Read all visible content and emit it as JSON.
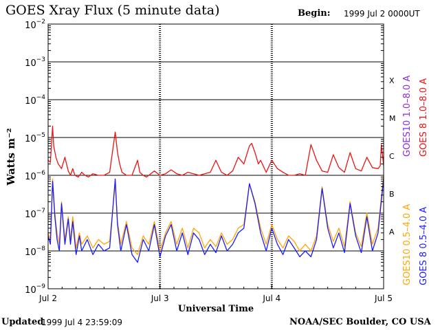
{
  "header": {
    "title": "GOES Xray Flux (5 minute data)",
    "begin_label": "Begin:",
    "begin_value": "1999 Jul 2 0000UT"
  },
  "footer": {
    "updated_label": "Updated",
    "updated_value": "1999 Jul  4 23:59:09",
    "credit": "NOAA/SEC Boulder, CO USA"
  },
  "chart_data": {
    "type": "line",
    "title": "GOES Xray Flux (5 minute data)",
    "xlabel": "Universal Time",
    "ylabel": "Watts m⁻²",
    "y_scale": "log",
    "ylim": [
      1e-09,
      0.01
    ],
    "xlim": [
      0,
      3
    ],
    "x_unit": "days since 1999 Jul 2 00:00 UT",
    "x_ticks": [
      {
        "x": 0,
        "label": "Jul 2"
      },
      {
        "x": 1,
        "label": "Jul 3"
      },
      {
        "x": 2,
        "label": "Jul 4"
      },
      {
        "x": 3,
        "label": "Jul 5"
      }
    ],
    "y_tick_labels": [
      {
        "base": "10",
        "exp": "−2",
        "value": 0.01
      },
      {
        "base": "10",
        "exp": "−3",
        "value": 0.001
      },
      {
        "base": "10",
        "exp": "−4",
        "value": 0.0001
      },
      {
        "base": "10",
        "exp": "−5",
        "value": 1e-05
      },
      {
        "base": "10",
        "exp": "−6",
        "value": 1e-06
      },
      {
        "base": "10",
        "exp": "−7",
        "value": 1e-07
      },
      {
        "base": "10",
        "exp": "−8",
        "value": 1e-08
      },
      {
        "base": "10",
        "exp": "−9",
        "value": 1e-09
      }
    ],
    "flare_classes": [
      {
        "label": "X",
        "value": 0.00032
      },
      {
        "label": "M",
        "value": 3.2e-05
      },
      {
        "label": "C",
        "value": 3.2e-06
      },
      {
        "label": "B",
        "value": 3.2e-07
      },
      {
        "label": "A",
        "value": 3.2e-08
      }
    ],
    "grid": {
      "horizontal_decades": true,
      "dashed_day_markers": true
    },
    "legend_position": "right, rotated vertical",
    "legend": [
      {
        "name": "GOES10 1.0–8.0 A",
        "color": "#8a2be2"
      },
      {
        "name": "GOES 8 1.0–8.0 A",
        "color": "#ee1111"
      },
      {
        "name": "GOES10 0.5–4.0 A",
        "color": "#ffa500"
      },
      {
        "name": "GOES 8 0.5–4.0 A",
        "color": "#1a1aff"
      }
    ],
    "series": [
      {
        "name": "GOES 8 1.0–8.0 A",
        "color": "#ee1111",
        "x": [
          0,
          0.02,
          0.04,
          0.05,
          0.07,
          0.09,
          0.12,
          0.15,
          0.18,
          0.2,
          0.22,
          0.24,
          0.27,
          0.3,
          0.33,
          0.36,
          0.4,
          0.45,
          0.5,
          0.55,
          0.6,
          0.62,
          0.64,
          0.66,
          0.7,
          0.75,
          0.8,
          0.82,
          0.85,
          0.88,
          0.9,
          0.95,
          1.0,
          1.05,
          1.1,
          1.15,
          1.2,
          1.25,
          1.3,
          1.35,
          1.4,
          1.45,
          1.5,
          1.55,
          1.6,
          1.65,
          1.7,
          1.75,
          1.8,
          1.82,
          1.85,
          1.88,
          1.9,
          1.95,
          2.0,
          2.05,
          2.1,
          2.15,
          2.2,
          2.25,
          2.3,
          2.35,
          2.4,
          2.45,
          2.5,
          2.55,
          2.6,
          2.65,
          2.7,
          2.75,
          2.8,
          2.85,
          2.9,
          2.95,
          2.97,
          2.98,
          3.0
        ],
        "values": [
          2.5e-06,
          2.2e-06,
          2e-05,
          6e-06,
          3e-06,
          2e-06,
          1.5e-06,
          3e-06,
          1.3e-06,
          1e-06,
          1.5e-06,
          1e-06,
          9e-07,
          1.2e-06,
          1e-06,
          9e-07,
          1.1e-06,
          1e-06,
          1e-06,
          1.2e-06,
          1.4e-05,
          4e-06,
          2e-06,
          1.2e-06,
          1e-06,
          1e-06,
          2.5e-06,
          1.2e-06,
          1e-06,
          9e-07,
          1e-06,
          1.3e-06,
          1e-06,
          1.1e-06,
          1.4e-06,
          1.1e-06,
          1e-06,
          1.2e-06,
          1.1e-06,
          1e-06,
          1.1e-06,
          1.2e-06,
          2.5e-06,
          1.2e-06,
          1e-06,
          1.3e-06,
          3e-06,
          2e-06,
          6e-06,
          7e-06,
          4e-06,
          2e-06,
          2.5e-06,
          1.2e-06,
          2.5e-06,
          1.5e-06,
          1.2e-06,
          1e-06,
          1e-06,
          1.1e-06,
          1e-06,
          6.5e-06,
          2.5e-06,
          1.3e-06,
          1.2e-06,
          3.5e-06,
          1.6e-06,
          1.2e-06,
          4e-06,
          1.5e-06,
          1.3e-06,
          3e-06,
          1.6e-06,
          1.5e-06,
          1.8e-06,
          6.5e-06,
          1.8e-06
        ]
      },
      {
        "name": "GOES10 0.5–4.0 A",
        "color": "#ffa500",
        "x": [
          0,
          0.02,
          0.04,
          0.06,
          0.08,
          0.1,
          0.12,
          0.15,
          0.18,
          0.2,
          0.22,
          0.25,
          0.28,
          0.3,
          0.35,
          0.4,
          0.45,
          0.5,
          0.55,
          0.6,
          0.62,
          0.65,
          0.7,
          0.75,
          0.8,
          0.85,
          0.9,
          0.95,
          1.0,
          1.05,
          1.1,
          1.15,
          1.2,
          1.25,
          1.3,
          1.35,
          1.4,
          1.45,
          1.5,
          1.55,
          1.6,
          1.65,
          1.7,
          1.75,
          1.8,
          1.85,
          1.9,
          1.95,
          2.0,
          2.05,
          2.1,
          2.15,
          2.2,
          2.25,
          2.3,
          2.35,
          2.4,
          2.45,
          2.5,
          2.55,
          2.6,
          2.65,
          2.7,
          2.75,
          2.8,
          2.85,
          2.9,
          2.95,
          3.0
        ],
        "values": [
          3e-08,
          2e-08,
          8e-07,
          1e-07,
          3e-08,
          1.5e-08,
          2e-07,
          2e-08,
          8e-08,
          2e-08,
          8e-08,
          1.2e-08,
          3e-08,
          1.5e-08,
          2.5e-08,
          1.2e-08,
          2e-08,
          1.5e-08,
          1.8e-08,
          6e-07,
          6e-08,
          1.5e-08,
          6e-08,
          1.2e-08,
          8e-09,
          2.5e-08,
          1.5e-08,
          6e-08,
          1e-08,
          3e-08,
          6e-08,
          1.5e-08,
          4e-08,
          1.2e-08,
          4e-08,
          3e-08,
          1.2e-08,
          2e-08,
          1.3e-08,
          3e-08,
          1.5e-08,
          2e-08,
          4e-08,
          5e-08,
          6e-07,
          2e-07,
          4e-08,
          1.5e-08,
          5e-08,
          2e-08,
          1.2e-08,
          2.5e-08,
          1.8e-08,
          1e-08,
          1.5e-08,
          1e-08,
          2.5e-08,
          5e-07,
          5e-08,
          1.8e-08,
          4e-08,
          1.3e-08,
          2e-07,
          3e-08,
          1.3e-08,
          1e-07,
          1.5e-08,
          4e-08,
          1e-06
        ]
      },
      {
        "name": "GOES 8 0.5–4.0 A",
        "color": "#1a1aff",
        "x": [
          0,
          0.02,
          0.04,
          0.06,
          0.08,
          0.1,
          0.12,
          0.15,
          0.18,
          0.2,
          0.22,
          0.25,
          0.28,
          0.3,
          0.35,
          0.4,
          0.45,
          0.5,
          0.55,
          0.6,
          0.62,
          0.65,
          0.7,
          0.75,
          0.8,
          0.85,
          0.9,
          0.95,
          1.0,
          1.05,
          1.1,
          1.15,
          1.2,
          1.25,
          1.3,
          1.35,
          1.4,
          1.45,
          1.5,
          1.55,
          1.6,
          1.65,
          1.7,
          1.75,
          1.8,
          1.85,
          1.9,
          1.95,
          2.0,
          2.05,
          2.1,
          2.15,
          2.2,
          2.25,
          2.3,
          2.35,
          2.4,
          2.45,
          2.5,
          2.55,
          2.6,
          2.65,
          2.7,
          2.75,
          2.8,
          2.85,
          2.9,
          2.95,
          3.0
        ],
        "values": [
          2.5e-08,
          1.5e-08,
          7e-07,
          8e-08,
          2e-08,
          1e-08,
          1.8e-07,
          1.5e-08,
          7e-08,
          1.5e-08,
          6e-08,
          8e-09,
          2.5e-08,
          1e-08,
          2e-08,
          8e-09,
          1.5e-08,
          1e-08,
          1.2e-08,
          8e-07,
          5e-08,
          1e-08,
          5e-08,
          8e-09,
          5e-09,
          2e-08,
          1e-08,
          5e-08,
          7e-09,
          2.5e-08,
          5e-08,
          1e-08,
          3e-08,
          8e-09,
          3e-08,
          2e-08,
          8e-09,
          1.5e-08,
          9e-09,
          2.5e-08,
          1e-08,
          1.5e-08,
          3e-08,
          4e-08,
          6e-07,
          1.8e-07,
          3e-08,
          1e-08,
          4e-08,
          1.5e-08,
          8e-09,
          2e-08,
          1.2e-08,
          7e-09,
          1e-08,
          7e-09,
          2e-08,
          4.5e-07,
          4e-08,
          1.2e-08,
          3e-08,
          9e-09,
          1.8e-07,
          2.5e-08,
          9e-09,
          8e-08,
          1e-08,
          3e-08,
          8e-07
        ]
      }
    ]
  }
}
